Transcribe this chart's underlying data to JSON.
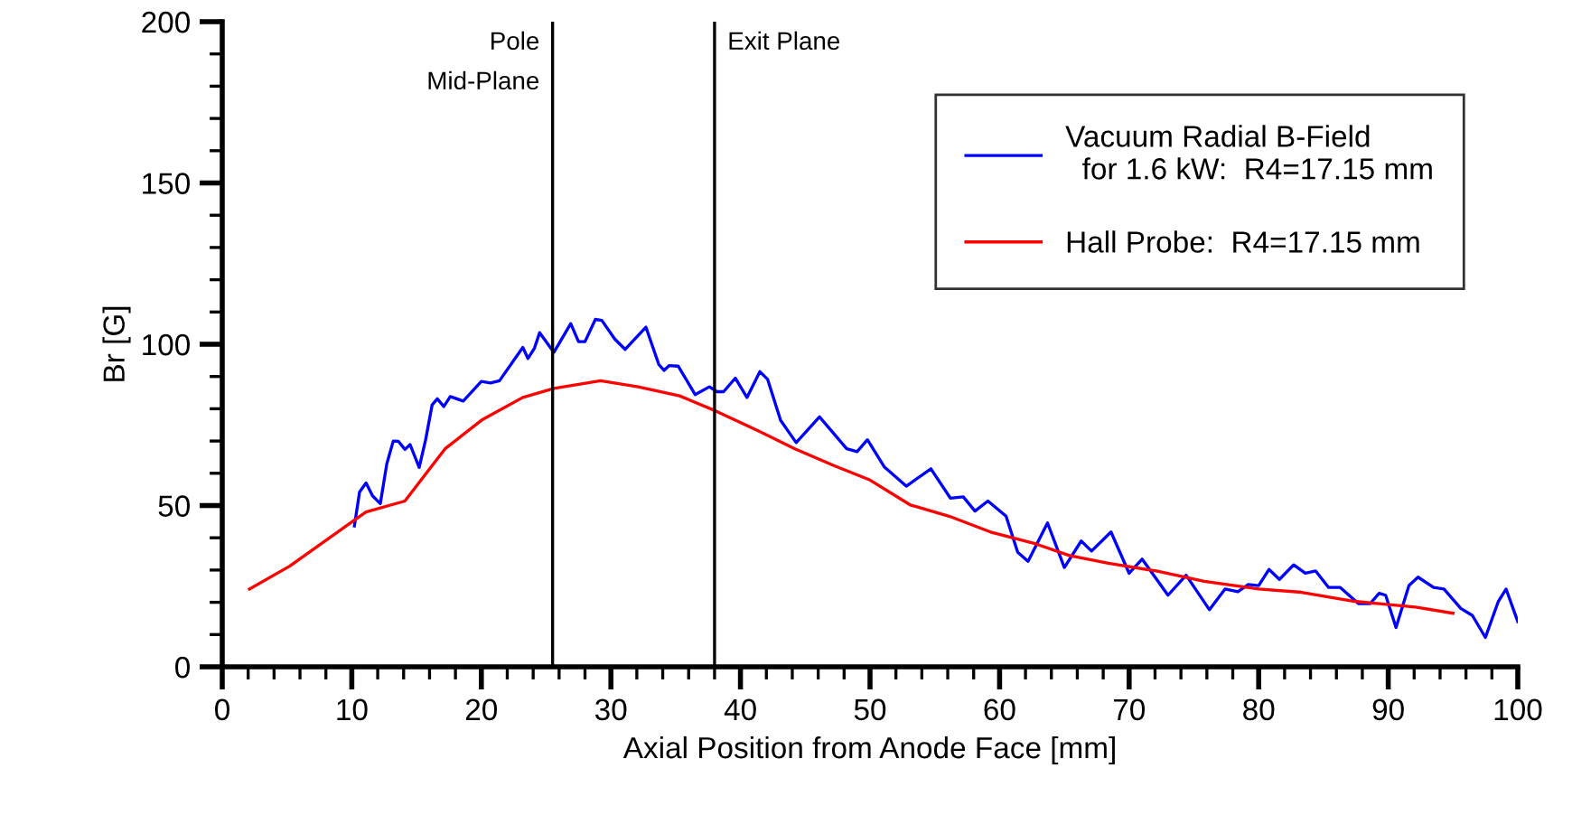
{
  "chart_data": {
    "type": "line",
    "xlabel": "Axial Position from Anode Face [mm]",
    "ylabel": "Br [G]",
    "xlim": [
      0,
      100
    ],
    "ylim": [
      0,
      200
    ],
    "xticks": [
      0,
      {
        "value": 2,
        "label": null
      },
      {
        "value": 4,
        "label": null
      },
      {
        "value": 6,
        "label": null
      },
      {
        "value": 8,
        "label": null
      },
      10,
      {
        "value": 12,
        "label": null
      },
      {
        "value": 14,
        "label": null
      },
      {
        "value": 16,
        "label": null
      },
      {
        "value": 18,
        "label": null
      },
      20,
      {
        "value": 22,
        "label": null
      },
      {
        "value": 24,
        "label": null
      },
      {
        "value": 26,
        "label": null
      },
      {
        "value": 28,
        "label": null
      },
      30,
      {
        "value": 32,
        "label": null
      },
      {
        "value": 34,
        "label": null
      },
      {
        "value": 36,
        "label": null
      },
      {
        "value": 38,
        "label": null
      },
      40,
      {
        "value": 42,
        "label": null
      },
      {
        "value": 44,
        "label": null
      },
      {
        "value": 46,
        "label": null
      },
      {
        "value": 48,
        "label": null
      },
      50,
      {
        "value": 52,
        "label": null
      },
      {
        "value": 54,
        "label": null
      },
      {
        "value": 56,
        "label": null
      },
      {
        "value": 58,
        "label": null
      },
      60,
      {
        "value": 62,
        "label": null
      },
      {
        "value": 64,
        "label": null
      },
      {
        "value": 66,
        "label": null
      },
      {
        "value": 68,
        "label": null
      },
      70,
      {
        "value": 72,
        "label": null
      },
      {
        "value": 74,
        "label": null
      },
      {
        "value": 76,
        "label": null
      },
      {
        "value": 78,
        "label": null
      },
      80,
      {
        "value": 82,
        "label": null
      },
      {
        "value": 84,
        "label": null
      },
      {
        "value": 86,
        "label": null
      },
      {
        "value": 88,
        "label": null
      },
      90,
      {
        "value": 92,
        "label": null
      },
      {
        "value": 94,
        "label": null
      },
      {
        "value": 96,
        "label": null
      },
      {
        "value": 98,
        "label": null
      },
      100
    ],
    "yticks": [
      0,
      {
        "value": 10,
        "label": null
      },
      {
        "value": 20,
        "label": null
      },
      {
        "value": 30,
        "label": null
      },
      {
        "value": 40,
        "label": null
      },
      50,
      {
        "value": 60,
        "label": null
      },
      {
        "value": 70,
        "label": null
      },
      {
        "value": 80,
        "label": null
      },
      {
        "value": 90,
        "label": null
      },
      100,
      {
        "value": 110,
        "label": null
      },
      {
        "value": 120,
        "label": null
      },
      {
        "value": 130,
        "label": null
      },
      {
        "value": 140,
        "label": null
      },
      150,
      {
        "value": 160,
        "label": null
      },
      {
        "value": 170,
        "label": null
      },
      {
        "value": 180,
        "label": null
      },
      {
        "value": 190,
        "label": null
      },
      200
    ],
    "grid": false,
    "legend": "top right",
    "marker": "none",
    "line_style": "solid",
    "series": [
      {
        "name": "Vacuum Radial B-Field\n  for 1.6 kW:  R4=17.15 mm",
        "color": "#0000ff",
        "x": [
          10.2,
          10.6,
          11.1,
          11.6,
          12.2,
          12.7,
          13.2,
          13.6,
          14.1,
          14.5,
          15.2,
          15.7,
          16.2,
          16.6,
          17.1,
          17.6,
          18.6,
          20.0,
          20.7,
          21.4,
          23.2,
          23.6,
          24.1,
          24.5,
          25.6,
          26.9,
          27.5,
          28.0,
          28.8,
          29.3,
          30.3,
          31.1,
          32.7,
          33.7,
          34.1,
          34.5,
          35.2,
          36.5,
          37.6,
          38.2,
          38.7,
          39.6,
          40.5,
          41.5,
          42.1,
          43.1,
          44.3,
          46.1,
          48.2,
          49.0,
          49.8,
          51.1,
          52.8,
          54.7,
          56.2,
          57.2,
          58.1,
          59.1,
          60.5,
          61.4,
          62.2,
          63.7,
          65.0,
          66.3,
          67.1,
          68.6,
          70.0,
          71.0,
          73.0,
          74.4,
          76.2,
          77.4,
          78.4,
          79.2,
          80.0,
          80.8,
          81.6,
          82.7,
          83.6,
          84.4,
          85.4,
          86.3,
          87.7,
          88.6,
          89.3,
          89.8,
          90.6,
          91.6,
          92.3,
          93.5,
          94.3,
          95.6,
          96.5,
          97.5,
          98.5,
          99.1,
          100
        ],
        "values": [
          43.7,
          54.2,
          57,
          53,
          50.6,
          62.9,
          70,
          69.9,
          67.4,
          68.9,
          61.8,
          70.4,
          81.2,
          83.1,
          80.7,
          83.8,
          82.4,
          88.5,
          88,
          88.7,
          99,
          95.6,
          98.8,
          103.6,
          97.5,
          106.4,
          100.8,
          100.8,
          107.7,
          107.4,
          101.6,
          98.4,
          105.3,
          93.7,
          91.9,
          93.4,
          93.2,
          84.4,
          86.8,
          85.3,
          85.3,
          89.5,
          83.5,
          91.5,
          89.1,
          76.4,
          69.5,
          77.5,
          67.6,
          66.7,
          70.4,
          62,
          56,
          61.4,
          52.3,
          52.7,
          48.3,
          51.4,
          46.7,
          35.5,
          32.7,
          44.6,
          30.8,
          39,
          35.9,
          41.8,
          29,
          33.4,
          22.2,
          28.4,
          17.7,
          24.1,
          23.3,
          25.5,
          25.2,
          30.2,
          27.1,
          31.6,
          29,
          29.7,
          24.6,
          24.6,
          19.6,
          19.6,
          22.8,
          22.2,
          12.2,
          25.2,
          27.8,
          24.6,
          24.1,
          18.1,
          15.9,
          9.1,
          20.3,
          24.1,
          14
        ]
      },
      {
        "name": "Hall Probe:  R4=17.15 mm",
        "color": "#ff0000",
        "x": [
          2.1,
          5.2,
          10.2,
          11.1,
          14.1,
          17.2,
          20.1,
          23.2,
          25.6,
          29.2,
          32.1,
          35.3,
          38.1,
          41.4,
          44.2,
          47.2,
          50.0,
          53.1,
          56.1,
          59.3,
          62.8,
          65.4,
          68.4,
          72.1,
          75.8,
          80.0,
          83.3,
          87.4,
          92.1,
          95.0
        ],
        "values": [
          24.1,
          31.2,
          45.5,
          48,
          51.4,
          67.6,
          76.7,
          83.5,
          86.3,
          88.7,
          86.8,
          84,
          79.3,
          73.1,
          67.6,
          62.4,
          57.9,
          50.2,
          46.7,
          41.8,
          38.1,
          34.5,
          32.1,
          29.7,
          26.5,
          24.1,
          23.1,
          20.3,
          18.5,
          16.6
        ]
      }
    ],
    "ref_lines": [
      {
        "axis": "x",
        "value": 25.5,
        "label": "Pole\nMid-Plane",
        "color": "#000000"
      },
      {
        "axis": "x",
        "value": 38,
        "label": "Exit Plane",
        "color": "#000000"
      }
    ]
  }
}
